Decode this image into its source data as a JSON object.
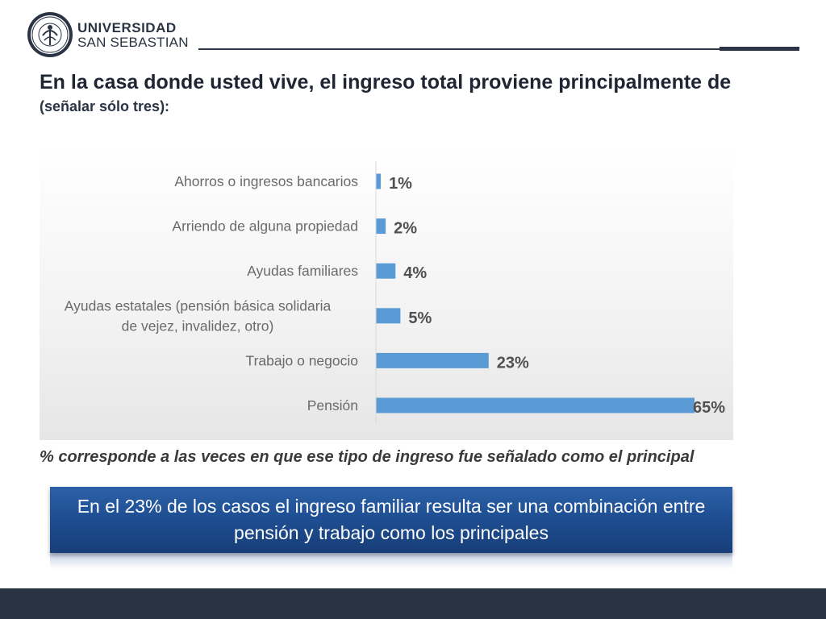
{
  "header": {
    "logo_line1": "UNIVERSIDAD",
    "logo_line2": "SAN SEBASTIAN",
    "logo_icon": "university-seal-icon"
  },
  "title": {
    "main": "En la casa donde usted vive, el ingreso total proviene principalmente de",
    "hint": "(señalar sólo tres):"
  },
  "chart_data": {
    "type": "bar",
    "orientation": "horizontal",
    "title": "",
    "xlabel": "",
    "ylabel": "",
    "xlim": [
      0,
      65
    ],
    "grid": false,
    "categories": [
      "Ahorros o ingresos bancarios",
      "Arriendo de alguna propiedad",
      "Ayudas familiares",
      "Ayudas estatales (pensión básica solidaria de vejez, invalidez, otro)",
      "Trabajo o negocio",
      "Pensión"
    ],
    "category_lines": [
      [
        "Ahorros o ingresos bancarios"
      ],
      [
        "Arriendo de alguna propiedad"
      ],
      [
        "Ayudas familiares"
      ],
      [
        "Ayudas estatales (pensión básica solidaria",
        "de vejez, invalidez, otro)"
      ],
      [
        "Trabajo o negocio"
      ],
      [
        "Pensión"
      ]
    ],
    "values": [
      1,
      2,
      4,
      5,
      23,
      65
    ],
    "value_labels": [
      "1%",
      "2%",
      "4%",
      "5%",
      "23%",
      "65%"
    ],
    "bar_color": "#5b9bd5"
  },
  "footnote": "% corresponde a las veces en que ese tipo de ingreso fue señalado como el principal",
  "callout": {
    "text": "En el 23% de los casos el ingreso familiar resulta ser una combinación entre pensión y trabajo como los principales"
  },
  "colors": {
    "dark": "#293341",
    "callout_blue": "#1f4f93"
  }
}
